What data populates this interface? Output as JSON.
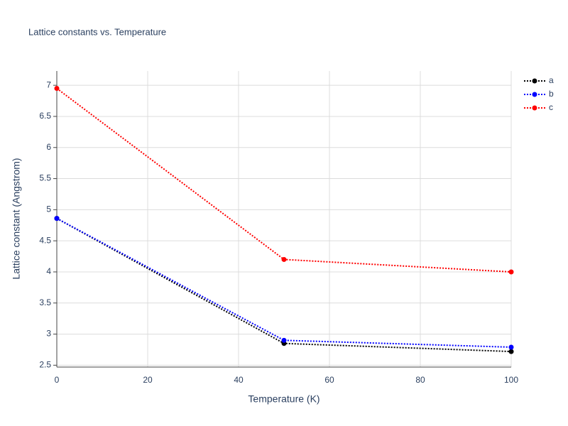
{
  "chart_data": {
    "type": "line",
    "title": "Lattice constants vs. Temperature",
    "x_label": "Temperature (K)",
    "y_label": "Lattice constant (Angstrom)",
    "x": [
      0,
      50,
      100
    ],
    "series": [
      {
        "name": "a",
        "color": "#000000",
        "values": [
          4.86,
          2.85,
          2.72
        ]
      },
      {
        "name": "b",
        "color": "#0000ff",
        "values": [
          4.86,
          2.9,
          2.79
        ]
      },
      {
        "name": "c",
        "color": "#ff0000",
        "values": [
          6.95,
          4.2,
          4.0
        ]
      }
    ],
    "xlim": [
      0,
      100
    ],
    "xticks": [
      0,
      20,
      40,
      60,
      80,
      100
    ],
    "ylim": [
      2.47,
      7.23
    ],
    "yticks": [
      2.5,
      3,
      3.5,
      4,
      4.5,
      5,
      5.5,
      6,
      6.5,
      7
    ],
    "grid": true,
    "legend": "top-right"
  }
}
